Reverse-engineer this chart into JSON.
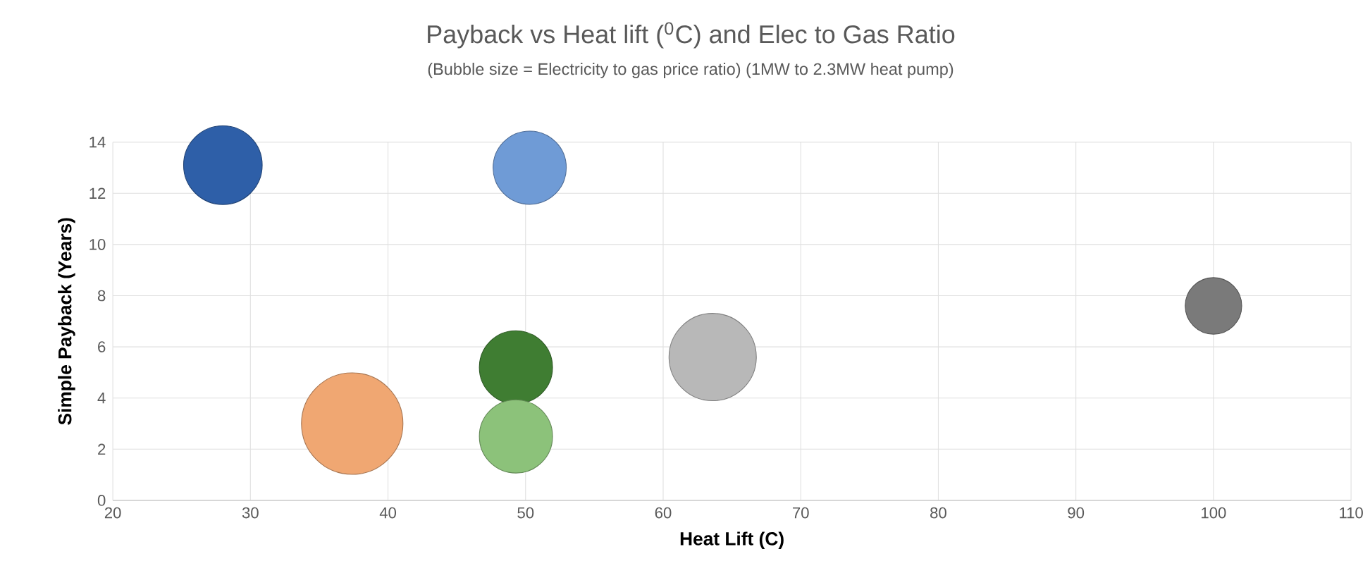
{
  "chart_data": {
    "type": "bubble",
    "title": "Payback vs Heat lift ($^{0}$C) and Elec to Gas Ratio",
    "subtitle": "(Bubble size = Electricity to gas price ratio)  (1MW to 2.3MW heat pump)",
    "xlabel": "Heat Lift (C)",
    "ylabel": "Simple Payback (Years)",
    "x": [
      28,
      50.3,
      37.4,
      49.3,
      49.3,
      63.6,
      100
    ],
    "values": [
      13.1,
      13,
      3,
      5.2,
      2.5,
      5.6,
      7.6
    ],
    "sizes": [
      0.6,
      0.52,
      1,
      0.52,
      0.52,
      0.74,
      0.31
    ],
    "colors": [
      "#2e5fa8",
      "#6f9bd6",
      "#f0a772",
      "#3f7d32",
      "#8cc27a",
      "#b8b8b8",
      "#7a7a7a"
    ],
    "xlim": [
      20,
      110
    ],
    "xticks": [
      20,
      30,
      40,
      50,
      60,
      70,
      80,
      90,
      100,
      110
    ],
    "ylim": [
      0,
      14
    ],
    "yticks": [
      0,
      2,
      4,
      6,
      8,
      10,
      12,
      14
    ],
    "grid": true
  }
}
